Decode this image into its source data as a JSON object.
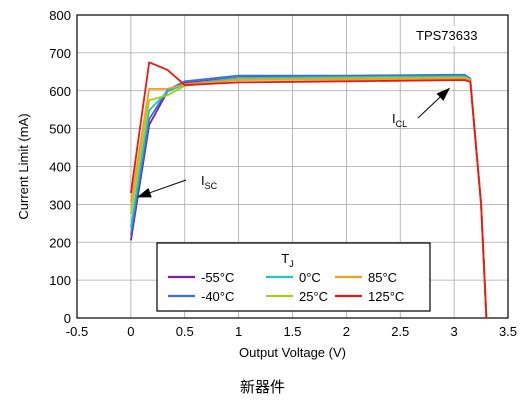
{
  "chart_data": {
    "type": "line",
    "title": "TPS73633",
    "xlabel": "Output Voltage (V)",
    "ylabel": "Current Limit (mA)",
    "xlim": [
      -0.5,
      3.5
    ],
    "ylim": [
      0,
      800
    ],
    "xticks": [
      -0.5,
      0,
      0.5,
      1,
      1.5,
      2,
      2.5,
      3,
      3.5
    ],
    "xtick_labels": [
      "-0.5",
      "0",
      "0.5",
      "1",
      "1.5",
      "2",
      "2.5",
      "3",
      "3.5"
    ],
    "yticks": [
      0,
      100,
      200,
      300,
      400,
      500,
      600,
      700,
      800
    ],
    "ytick_labels": [
      "0",
      "100",
      "200",
      "300",
      "400",
      "500",
      "600",
      "700",
      "800"
    ],
    "grid": true,
    "legend": {
      "title": "T",
      "title_sub": "J",
      "placement": "bottom-center"
    },
    "series": [
      {
        "name": "-55°C",
        "color": "#7a1fa2",
        "x": [
          0,
          0.17,
          0.34,
          0.5,
          1.0,
          2.0,
          3.0,
          3.1,
          3.15,
          3.25,
          3.3
        ],
        "y": [
          205,
          510,
          598,
          620,
          635,
          637,
          640,
          640,
          630,
          300,
          0
        ]
      },
      {
        "name": "-40°C",
        "color": "#3b6fd8",
        "x": [
          0,
          0.17,
          0.34,
          0.5,
          1.0,
          2.0,
          3.0,
          3.1,
          3.15,
          3.25,
          3.3
        ],
        "y": [
          218,
          525,
          602,
          625,
          640,
          640,
          642,
          642,
          632,
          300,
          0
        ]
      },
      {
        "name": "0°C",
        "color": "#22c4c4",
        "x": [
          0,
          0.17,
          0.34,
          0.5,
          1.0,
          2.0,
          3.0,
          3.1,
          3.15,
          3.25,
          3.3
        ],
        "y": [
          240,
          548,
          598,
          617,
          634,
          636,
          638,
          638,
          630,
          300,
          0
        ]
      },
      {
        "name": "25°C",
        "color": "#a6cc1c",
        "x": [
          0,
          0.17,
          0.34,
          0.5,
          1.0,
          2.0,
          3.0,
          3.1,
          3.15,
          3.25,
          3.3
        ],
        "y": [
          275,
          575,
          588,
          613,
          630,
          633,
          635,
          635,
          628,
          300,
          0
        ]
      },
      {
        "name": "85°C",
        "color": "#f2a01c",
        "x": [
          0,
          0.17,
          0.34,
          0.5,
          1.0,
          2.0,
          3.0,
          3.1,
          3.15,
          3.25,
          3.3
        ],
        "y": [
          305,
          605,
          605,
          617,
          628,
          630,
          632,
          632,
          626,
          300,
          0
        ]
      },
      {
        "name": "125°C",
        "color": "#e81818",
        "x": [
          0,
          0.17,
          0.34,
          0.5,
          1.0,
          2.0,
          3.0,
          3.1,
          3.15,
          3.25,
          3.3
        ],
        "y": [
          330,
          675,
          655,
          615,
          622,
          625,
          628,
          628,
          624,
          300,
          0
        ]
      }
    ],
    "annotations": [
      {
        "text": "I",
        "sub": "SC",
        "target": [
          0.0,
          250
        ]
      },
      {
        "text": "I",
        "sub": "CL",
        "target": [
          3.0,
          640
        ]
      }
    ]
  },
  "caption": "新器件"
}
